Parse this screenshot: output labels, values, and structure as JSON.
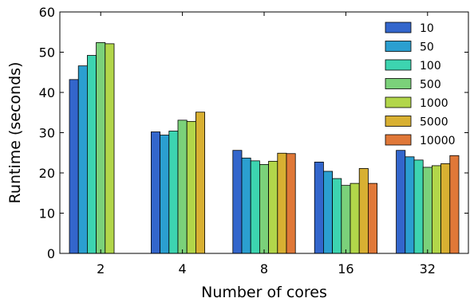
{
  "chart_data": {
    "type": "bar",
    "title": "",
    "xlabel": "Number of cores",
    "ylabel": "Runtime (seconds)",
    "ylim": [
      0,
      60
    ],
    "yticks": [
      "0",
      "10",
      "20",
      "30",
      "40",
      "50",
      "60"
    ],
    "categories": [
      "2",
      "4",
      "8",
      "16",
      "32"
    ],
    "grid": false,
    "legend_position": "top-right",
    "series": [
      {
        "name": "10",
        "color": "#3366cc",
        "values": [
          43.2,
          30.2,
          25.6,
          22.7,
          25.6
        ]
      },
      {
        "name": "50",
        "color": "#2b9fd0",
        "values": [
          46.6,
          29.4,
          23.7,
          20.4,
          24.0
        ]
      },
      {
        "name": "100",
        "color": "#3dd4b0",
        "values": [
          49.2,
          30.4,
          23.0,
          18.6,
          23.2
        ]
      },
      {
        "name": "500",
        "color": "#7bd17a",
        "values": [
          52.4,
          33.1,
          22.1,
          16.9,
          21.4
        ]
      },
      {
        "name": "1000",
        "color": "#b2d64a",
        "values": [
          52.1,
          32.8,
          22.9,
          17.4,
          21.8
        ]
      },
      {
        "name": "5000",
        "color": "#d8b032",
        "values": [
          null,
          35.1,
          24.9,
          21.1,
          22.3
        ]
      },
      {
        "name": "10000",
        "color": "#e07838",
        "values": [
          null,
          null,
          24.8,
          17.4,
          24.3
        ]
      }
    ]
  }
}
